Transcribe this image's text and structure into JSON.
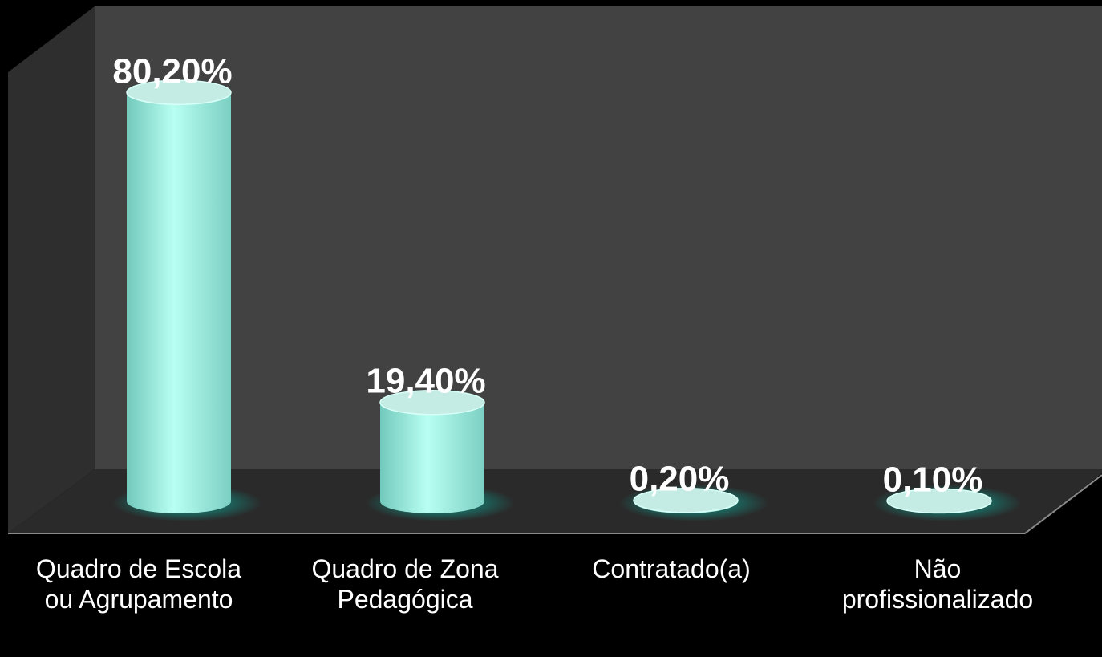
{
  "chart_data": {
    "type": "bar",
    "categories": [
      "Quadro de Escola ou Agrupamento",
      "Quadro de Zona Pedagógica",
      "Contratado(a)",
      "Não profissionalizado"
    ],
    "values": [
      80.2,
      19.4,
      0.2,
      0.1
    ],
    "value_labels": [
      "80,20%",
      "19,40%",
      "0,20%",
      "0,10%"
    ],
    "color": "#a8f5e8",
    "ylim": [
      0,
      90
    ]
  }
}
